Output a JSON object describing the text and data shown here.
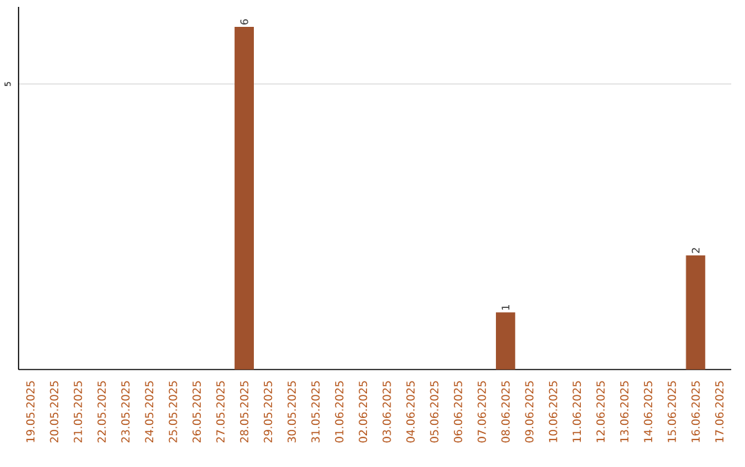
{
  "chart_data": {
    "type": "bar",
    "categories": [
      "19.05.2025",
      "20.05.2025",
      "21.05.2025",
      "22.05.2025",
      "23.05.2025",
      "24.05.2025",
      "25.05.2025",
      "26.05.2025",
      "27.05.2025",
      "28.05.2025",
      "29.05.2025",
      "30.05.2025",
      "31.05.2025",
      "01.06.2025",
      "02.06.2025",
      "03.06.2025",
      "04.06.2025",
      "05.06.2025",
      "06.06.2025",
      "07.06.2025",
      "08.06.2025",
      "09.06.2025",
      "10.06.2025",
      "11.06.2025",
      "12.06.2025",
      "13.06.2025",
      "14.06.2025",
      "15.06.2025",
      "16.06.2025",
      "17.06.2025"
    ],
    "values": [
      0,
      0,
      0,
      0,
      0,
      0,
      0,
      0,
      0,
      6,
      0,
      0,
      0,
      0,
      0,
      0,
      0,
      0,
      0,
      0,
      1,
      0,
      0,
      0,
      0,
      0,
      0,
      0,
      2,
      0
    ],
    "value_labels": [
      null,
      null,
      null,
      null,
      null,
      null,
      null,
      null,
      null,
      "6",
      null,
      null,
      null,
      null,
      null,
      null,
      null,
      null,
      null,
      null,
      "1",
      null,
      null,
      null,
      null,
      null,
      null,
      null,
      "2",
      null
    ],
    "color": "#a0522d",
    "ylim": [
      0,
      6.35
    ],
    "yticks": [
      5
    ],
    "grid": "y"
  }
}
